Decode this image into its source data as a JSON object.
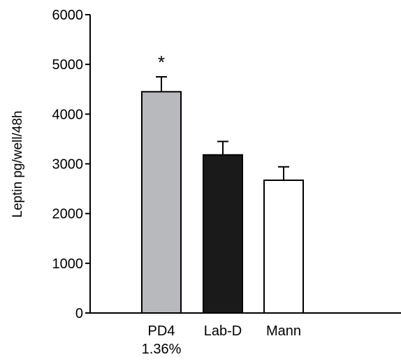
{
  "chart_data": {
    "type": "bar",
    "title": "",
    "xlabel": "",
    "ylabel": "Leptin pg/well/48h",
    "ylim": [
      0,
      6000
    ],
    "yticks": [
      0,
      1000,
      2000,
      3000,
      4000,
      5000,
      6000
    ],
    "categories": [
      "PD4",
      "Lab-D",
      "Mann"
    ],
    "category_sublabels": [
      "1.36%",
      "",
      ""
    ],
    "values": [
      4450,
      3180,
      2670
    ],
    "error_upper": [
      300,
      270,
      270
    ],
    "bar_colors": [
      "#b8b9bd",
      "#1a1a1a",
      "#ffffff"
    ],
    "bar_edge_color": "#000000",
    "annotations": [
      {
        "category": "PD4",
        "text": "*"
      }
    ],
    "grid": false,
    "legend": "none"
  }
}
